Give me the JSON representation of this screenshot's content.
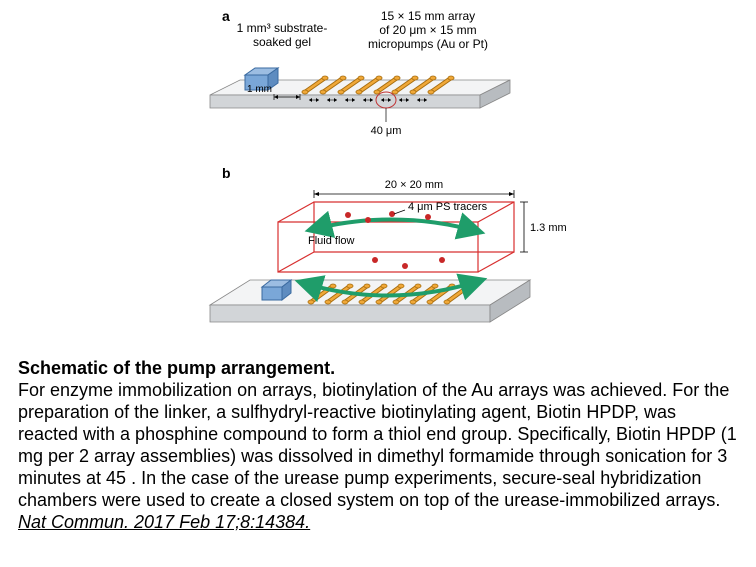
{
  "panelA": {
    "label": "a",
    "annot_left": "1 mm³ substrate-\nsoaked gel",
    "annot_right": "15 × 15 mm array\nof 20 μm × 15 mm\nmicropumps (Au or Pt)",
    "gap_label": "1 mm",
    "spacing_label": "40 μm",
    "bar_color": "#f0a838",
    "bar_stroke": "#a86e10",
    "gel_fill": "#7aa7d8",
    "gel_stroke": "#3a6aa0",
    "slab_top": "#f3f4f5",
    "slab_side": "#b8bcc0",
    "slab_front": "#d2d5d8",
    "num_bars": 8
  },
  "panelB": {
    "label": "b",
    "box_dim_label": "20 × 20 mm",
    "tracer_label": "4 μm PS tracers",
    "height_label": "1.3 mm",
    "flow_label": "Fluid flow",
    "box_stroke": "#d83030",
    "tracer_fill": "#c82828",
    "arrow_color": "#1f9d6a",
    "bar_color": "#f0a838",
    "bar_stroke": "#a86e10",
    "gel_fill": "#7aa7d8",
    "gel_stroke": "#3a6aa0",
    "slab_top": "#f3f4f5",
    "slab_side": "#b8bcc0",
    "slab_front": "#d2d5d8",
    "num_bars": 9
  },
  "caption": {
    "title": "Schematic of the pump arrangement.",
    "body": "For enzyme immobilization on arrays, biotinylation of the Au arrays was achieved. For the preparation of the linker, a sulfhydryl-reactive biotinylating agent, Biotin HPDP, was reacted with a phosphine compound to form a thiol end group. Specifically, Biotin HPDP (1 mg per 2 array assemblies) was dissolved in dimethyl formamide through sonication for 3 minutes at 45 . In the case of the urease pump experiments, secure-seal hybridization chambers were used to create a closed system on top of the urease-immobilized arrays. ",
    "citation": "Nat Commun. 2017 Feb 17;8:14384."
  },
  "style": {
    "caption_fontsize": 18,
    "annot_fontsize": 12,
    "label_fontsize": 14
  }
}
